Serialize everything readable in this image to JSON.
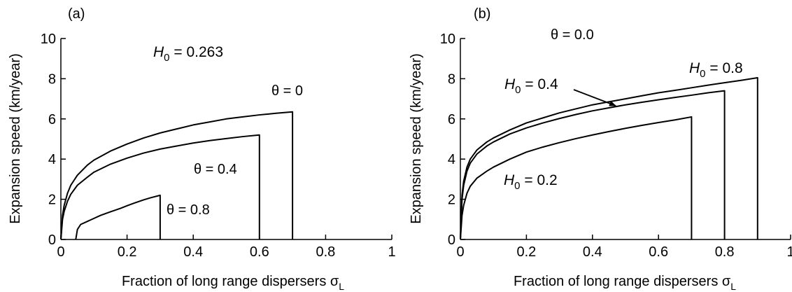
{
  "chart_data": [
    {
      "type": "line",
      "panel_label": "(a)",
      "xlabel": "Fraction of long range dispersers σL",
      "ylabel": "Expansion speed (km/year)",
      "xlim": [
        0,
        1
      ],
      "ylim": [
        0,
        10
      ],
      "xticks": [
        "0",
        "0.2",
        "0.4",
        "0.6",
        "0.8",
        "1"
      ],
      "yticks": [
        "0",
        "2",
        "4",
        "6",
        "8",
        "10"
      ],
      "grid": false,
      "annotations": [
        "H0 = 0.263"
      ],
      "series": [
        {
          "name": "θ = 0",
          "x": [
            0,
            0.005,
            0.01,
            0.02,
            0.03,
            0.05,
            0.08,
            0.1,
            0.15,
            0.2,
            0.25,
            0.3,
            0.35,
            0.4,
            0.45,
            0.5,
            0.55,
            0.6,
            0.65,
            0.7,
            0.7
          ],
          "y": [
            0,
            1.2,
            1.7,
            2.3,
            2.7,
            3.2,
            3.7,
            3.95,
            4.4,
            4.75,
            5.05,
            5.3,
            5.5,
            5.7,
            5.85,
            6.0,
            6.1,
            6.2,
            6.28,
            6.35,
            0
          ]
        },
        {
          "name": "θ = 0.4",
          "x": [
            0,
            0.005,
            0.01,
            0.02,
            0.03,
            0.05,
            0.08,
            0.1,
            0.15,
            0.2,
            0.25,
            0.3,
            0.35,
            0.4,
            0.45,
            0.5,
            0.55,
            0.6,
            0.6
          ],
          "y": [
            0,
            1.0,
            1.4,
            1.9,
            2.25,
            2.7,
            3.1,
            3.35,
            3.75,
            4.05,
            4.3,
            4.5,
            4.65,
            4.8,
            4.92,
            5.02,
            5.12,
            5.2,
            0
          ]
        },
        {
          "name": "θ = 0.8",
          "x": [
            0.045,
            0.05,
            0.06,
            0.08,
            0.1,
            0.12,
            0.15,
            0.18,
            0.2,
            0.22,
            0.25,
            0.27,
            0.3,
            0.3
          ],
          "y": [
            0,
            0.5,
            0.75,
            0.9,
            1.05,
            1.2,
            1.38,
            1.55,
            1.68,
            1.8,
            1.97,
            2.07,
            2.2,
            0
          ]
        }
      ]
    },
    {
      "type": "line",
      "panel_label": "(b)",
      "xlabel": "Fraction of long range dispersers σL",
      "ylabel": "Expansion speed (km/year)",
      "xlim": [
        0,
        1
      ],
      "ylim": [
        0,
        10
      ],
      "xticks": [
        "0",
        "0.2",
        "0.4",
        "0.6",
        "0.8",
        "1"
      ],
      "yticks": [
        "0",
        "2",
        "4",
        "6",
        "8",
        "10"
      ],
      "grid": false,
      "annotations": [
        "θ = 0.0"
      ],
      "series": [
        {
          "name": "H0 = 0.8",
          "x": [
            0,
            0.005,
            0.01,
            0.02,
            0.03,
            0.05,
            0.08,
            0.1,
            0.15,
            0.2,
            0.25,
            0.3,
            0.35,
            0.4,
            0.45,
            0.5,
            0.55,
            0.6,
            0.65,
            0.7,
            0.75,
            0.8,
            0.85,
            0.9,
            0.9
          ],
          "y": [
            0,
            2.2,
            2.9,
            3.6,
            4.0,
            4.45,
            4.85,
            5.05,
            5.45,
            5.8,
            6.05,
            6.3,
            6.5,
            6.7,
            6.85,
            7.0,
            7.15,
            7.3,
            7.42,
            7.55,
            7.68,
            7.8,
            7.92,
            8.05,
            0
          ]
        },
        {
          "name": "H0 = 0.4",
          "x": [
            0,
            0.005,
            0.01,
            0.02,
            0.03,
            0.05,
            0.08,
            0.1,
            0.15,
            0.2,
            0.25,
            0.3,
            0.35,
            0.4,
            0.45,
            0.5,
            0.55,
            0.6,
            0.65,
            0.7,
            0.75,
            0.8,
            0.8
          ],
          "y": [
            0,
            2.0,
            2.7,
            3.4,
            3.8,
            4.25,
            4.65,
            4.85,
            5.25,
            5.55,
            5.8,
            6.02,
            6.22,
            6.4,
            6.55,
            6.7,
            6.83,
            6.95,
            7.07,
            7.18,
            7.3,
            7.4,
            0
          ]
        },
        {
          "name": "H0 = 0.2",
          "x": [
            0,
            0.005,
            0.01,
            0.02,
            0.03,
            0.05,
            0.08,
            0.1,
            0.15,
            0.2,
            0.25,
            0.3,
            0.35,
            0.4,
            0.45,
            0.5,
            0.55,
            0.6,
            0.65,
            0.7,
            0.7
          ],
          "y": [
            0,
            1.2,
            1.7,
            2.3,
            2.65,
            3.05,
            3.4,
            3.6,
            4.0,
            4.35,
            4.6,
            4.82,
            5.02,
            5.2,
            5.37,
            5.53,
            5.68,
            5.82,
            5.95,
            6.1,
            0
          ]
        }
      ]
    }
  ]
}
